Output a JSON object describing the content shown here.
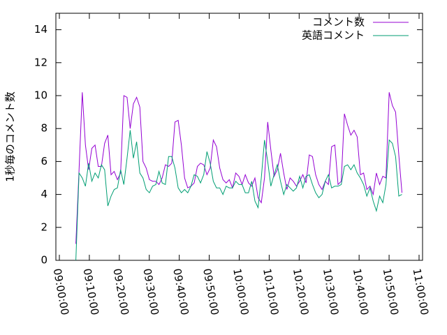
{
  "chart_data": {
    "type": "line",
    "ylabel": "1秒毎のコメント数",
    "x": [
      "09:05:30",
      "09:06:34",
      "09:07:38",
      "09:08:42",
      "09:09:46",
      "09:10:50",
      "09:11:54",
      "09:12:58",
      "09:14:02",
      "09:15:06",
      "09:16:10",
      "09:17:14",
      "09:18:18",
      "09:19:22",
      "09:20:26",
      "09:21:30",
      "09:22:34",
      "09:23:38",
      "09:24:42",
      "09:25:46",
      "09:26:50",
      "09:27:54",
      "09:28:58",
      "09:30:02",
      "09:31:06",
      "09:32:10",
      "09:33:14",
      "09:34:18",
      "09:35:22",
      "09:36:26",
      "09:37:30",
      "09:38:34",
      "09:39:38",
      "09:40:42",
      "09:41:46",
      "09:42:50",
      "09:43:54",
      "09:44:58",
      "09:46:02",
      "09:47:06",
      "09:48:10",
      "09:49:14",
      "09:50:18",
      "09:51:22",
      "09:52:26",
      "09:53:30",
      "09:54:34",
      "09:55:38",
      "09:56:42",
      "09:57:46",
      "09:58:50",
      "09:59:54",
      "10:00:58",
      "10:02:02",
      "10:03:06",
      "10:04:10",
      "10:05:14",
      "10:06:18",
      "10:07:22",
      "10:08:26",
      "10:09:30",
      "10:10:34",
      "10:11:38",
      "10:12:42",
      "10:13:46",
      "10:14:50",
      "10:15:54",
      "10:16:58",
      "10:18:02",
      "10:19:06",
      "10:20:10",
      "10:21:14",
      "10:22:18",
      "10:23:22",
      "10:24:26",
      "10:25:30",
      "10:26:34",
      "10:27:38",
      "10:28:42",
      "10:29:46",
      "10:30:50",
      "10:31:54",
      "10:32:58",
      "10:34:02",
      "10:35:06",
      "10:36:10",
      "10:37:14",
      "10:38:18",
      "10:39:22",
      "10:40:26",
      "10:41:30",
      "10:42:34",
      "10:43:38",
      "10:44:42",
      "10:45:46",
      "10:46:50",
      "10:47:54",
      "10:48:58",
      "10:50:02",
      "10:51:06",
      "10:52:10",
      "10:53:14",
      "10:54:18"
    ],
    "series": [
      {
        "name": "コメント数",
        "color": "#9400d3",
        "values": [
          1.0,
          5.5,
          10.2,
          7.0,
          5.5,
          6.8,
          7.0,
          5.7,
          5.7,
          7.1,
          7.6,
          5.2,
          5.4,
          4.9,
          5.3,
          10.0,
          9.9,
          8.0,
          9.5,
          9.9,
          9.3,
          6.0,
          5.6,
          4.9,
          4.8,
          4.8,
          4.6,
          5.0,
          5.8,
          5.7,
          5.9,
          8.4,
          8.5,
          7.0,
          5.0,
          4.4,
          4.5,
          4.7,
          5.7,
          5.9,
          5.8,
          5.2,
          5.6,
          7.3,
          6.9,
          5.6,
          4.9,
          4.7,
          4.9,
          4.4,
          5.3,
          5.1,
          4.6,
          5.2,
          4.7,
          4.5,
          5.0,
          3.8,
          3.5,
          5.0,
          8.4,
          6.7,
          5.1,
          5.5,
          6.5,
          5.3,
          4.3,
          5.0,
          4.8,
          4.5,
          4.8,
          5.2,
          4.7,
          6.4,
          6.3,
          5.2,
          4.6,
          4.3,
          4.8,
          4.6,
          6.9,
          7.0,
          4.6,
          4.8,
          8.9,
          8.2,
          7.6,
          7.9,
          7.5,
          5.2,
          5.3,
          4.3,
          4.5,
          4.0,
          5.3,
          4.6,
          5.1,
          5.0,
          10.2,
          9.4,
          9.0,
          6.4,
          4.1
        ]
      },
      {
        "name": "英語コメント",
        "color": "#009e73",
        "values": [
          0.0,
          5.3,
          5.0,
          4.5,
          5.9,
          4.8,
          5.3,
          5.0,
          5.8,
          5.5,
          3.3,
          3.9,
          4.3,
          4.4,
          5.5,
          4.6,
          6.2,
          7.9,
          6.2,
          7.2,
          5.3,
          5.0,
          4.3,
          4.1,
          4.5,
          4.6,
          5.4,
          4.7,
          4.6,
          6.3,
          6.3,
          5.6,
          4.4,
          4.1,
          4.3,
          4.1,
          4.5,
          5.2,
          5.1,
          4.7,
          5.2,
          6.6,
          5.9,
          4.8,
          4.4,
          4.4,
          4.0,
          4.5,
          4.4,
          4.4,
          4.8,
          4.6,
          4.6,
          4.1,
          4.1,
          4.8,
          3.6,
          3.2,
          5.0,
          7.3,
          6.0,
          4.5,
          5.2,
          5.8,
          4.8,
          4.0,
          4.6,
          4.4,
          4.2,
          4.4,
          5.1,
          4.4,
          5.1,
          5.2,
          4.6,
          4.1,
          3.8,
          4.0,
          4.8,
          5.2,
          4.4,
          4.5,
          4.5,
          4.6,
          5.7,
          5.8,
          5.5,
          5.8,
          5.3,
          5.0,
          4.6,
          3.9,
          4.4,
          3.6,
          3.0,
          3.9,
          3.5,
          4.6,
          7.3,
          7.1,
          6.3,
          3.9,
          4.0
        ]
      }
    ],
    "xlim": [
      "08:58:50",
      "11:01:10"
    ],
    "xticks": [
      "09:00:00",
      "09:10:00",
      "09:20:00",
      "09:30:00",
      "09:40:00",
      "09:50:00",
      "10:00:00",
      "10:10:00",
      "10:20:00",
      "10:30:00",
      "10:40:00",
      "10:50:00",
      "11:00:00"
    ],
    "ylim": [
      0,
      15
    ],
    "yticks": [
      0,
      2,
      4,
      6,
      8,
      10,
      12,
      14
    ],
    "legend": "top-right",
    "grid": false
  }
}
